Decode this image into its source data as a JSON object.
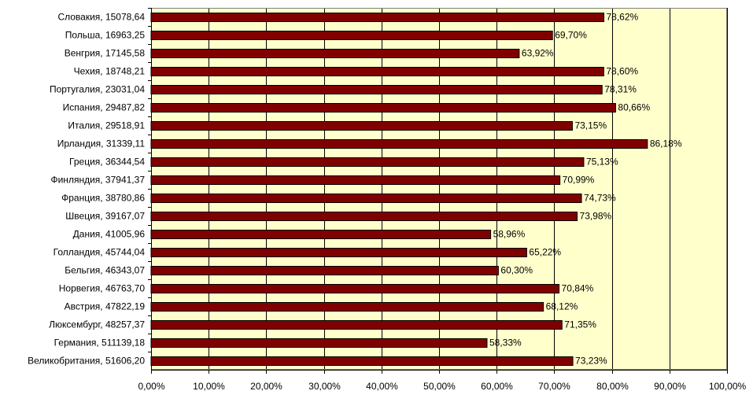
{
  "chart_data": {
    "type": "bar",
    "orientation": "horizontal",
    "categories": [
      "Словакия, 15078,64",
      "Польша, 16963,25",
      "Венгрия, 17145,58",
      "Чехия, 18748,21",
      "Португалия, 23031,04",
      "Испания, 29487,82",
      "Италия, 29518,91",
      "Ирландия, 31339,11",
      "Греция, 36344,54",
      "Финляндия, 37941,37",
      "Франция, 38780,86",
      "Швеция, 39167,07",
      "Дания, 41005,96",
      "Голландия, 45744,04",
      "Бельгия, 46343,07",
      "Норвегия, 46763,70",
      "Австрия, 47822,19",
      "Люксембург, 48257,37",
      "Германия, 511139,18",
      "Великобритания, 51606,20"
    ],
    "values": [
      78.62,
      69.7,
      63.92,
      78.6,
      78.31,
      80.66,
      73.15,
      86.18,
      75.13,
      70.99,
      74.73,
      73.98,
      58.96,
      65.22,
      60.3,
      70.84,
      68.12,
      71.35,
      58.33,
      73.23
    ],
    "value_labels": [
      "78,62%",
      "69,70%",
      "63,92%",
      "78,60%",
      "78,31%",
      "80,66%",
      "73,15%",
      "86,18%",
      "75,13%",
      "70,99%",
      "74,73%",
      "73,98%",
      "58,96%",
      "65,22%",
      "60,30%",
      "70,84%",
      "68,12%",
      "71,35%",
      "58,33%",
      "73,23%"
    ],
    "x_ticks": [
      "0,00%",
      "10,00%",
      "20,00%",
      "30,00%",
      "40,00%",
      "50,00%",
      "60,00%",
      "70,00%",
      "80,00%",
      "90,00%",
      "100,00%"
    ],
    "xlim": [
      0,
      100
    ],
    "grid": true,
    "title": "",
    "xlabel": "",
    "ylabel": "",
    "colors": {
      "bar": "#800000",
      "plot_background": "#ffffcc",
      "grid": "#000000"
    }
  }
}
